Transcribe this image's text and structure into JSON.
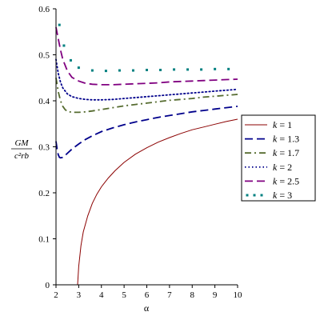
{
  "chart_data": {
    "type": "line",
    "title": "",
    "xlabel": "α",
    "ylabel": {
      "numerator": "GM",
      "denominator": "c²rb"
    },
    "xlim": [
      2,
      10
    ],
    "ylim": [
      0,
      0.6
    ],
    "xticks": [
      2,
      3,
      4,
      5,
      6,
      7,
      8,
      9,
      10
    ],
    "yticks": [
      0,
      0.1,
      0.2,
      0.3,
      0.4,
      0.5,
      0.6
    ],
    "grid": false,
    "legend_position": "right",
    "series": [
      {
        "name": "k = 1",
        "k": "1",
        "color": "#8b0000",
        "style": "solid",
        "x": [
          2.95,
          3.0,
          3.1,
          3.2,
          3.4,
          3.6,
          3.8,
          4.0,
          4.3,
          4.6,
          5.0,
          5.5,
          6.0,
          6.5,
          7.0,
          7.5,
          8.0,
          8.5,
          9.0,
          9.5,
          10.0
        ],
        "y": [
          0.0,
          0.04,
          0.085,
          0.115,
          0.15,
          0.177,
          0.197,
          0.213,
          0.232,
          0.248,
          0.266,
          0.284,
          0.298,
          0.31,
          0.32,
          0.329,
          0.337,
          0.343,
          0.349,
          0.355,
          0.36
        ]
      },
      {
        "name": "k = 1.3",
        "k": "1.3",
        "color": "#00008b",
        "style": "longdash",
        "x": [
          2.0,
          2.05,
          2.1,
          2.15,
          2.2,
          2.3,
          2.4,
          2.5,
          2.7,
          3.0,
          3.3,
          3.6,
          4.0,
          4.5,
          5.0,
          5.5,
          6.0,
          6.5,
          7.0,
          7.5,
          8.0,
          8.5,
          9.0,
          9.5,
          10.0
        ],
        "y": [
          0.312,
          0.295,
          0.283,
          0.277,
          0.276,
          0.277,
          0.281,
          0.286,
          0.295,
          0.306,
          0.316,
          0.324,
          0.333,
          0.341,
          0.348,
          0.354,
          0.359,
          0.364,
          0.368,
          0.372,
          0.376,
          0.379,
          0.382,
          0.385,
          0.388
        ]
      },
      {
        "name": "k = 1.7",
        "k": "1.7",
        "color": "#556b2f",
        "style": "dashdot",
        "x": [
          2.0,
          2.1,
          2.2,
          2.3,
          2.4,
          2.5,
          2.7,
          3.0,
          3.3,
          3.6,
          4.0,
          4.5,
          5.0,
          5.5,
          6.0,
          6.5,
          7.0,
          7.5,
          8.0,
          8.5,
          9.0,
          9.5,
          10.0
        ],
        "y": [
          0.45,
          0.42,
          0.4,
          0.388,
          0.381,
          0.377,
          0.375,
          0.375,
          0.376,
          0.378,
          0.381,
          0.385,
          0.389,
          0.392,
          0.395,
          0.398,
          0.401,
          0.403,
          0.405,
          0.408,
          0.41,
          0.412,
          0.414
        ]
      },
      {
        "name": "k = 2",
        "k": "2",
        "color": "#00008b",
        "style": "dotted",
        "x": [
          2.0,
          2.1,
          2.2,
          2.3,
          2.5,
          2.7,
          3.0,
          3.3,
          3.6,
          4.0,
          4.5,
          5.0,
          5.5,
          6.0,
          6.5,
          7.0,
          7.5,
          8.0,
          8.5,
          9.0,
          9.5,
          10.0
        ],
        "y": [
          0.49,
          0.46,
          0.44,
          0.428,
          0.415,
          0.409,
          0.405,
          0.403,
          0.402,
          0.402,
          0.403,
          0.405,
          0.407,
          0.409,
          0.411,
          0.413,
          0.415,
          0.417,
          0.419,
          0.421,
          0.423,
          0.425
        ]
      },
      {
        "name": "k = 2.5",
        "k": "2.5",
        "color": "#800080",
        "style": "longdash",
        "x": [
          2.0,
          2.1,
          2.2,
          2.3,
          2.5,
          2.7,
          3.0,
          3.3,
          3.6,
          4.0,
          4.5,
          5.0,
          5.5,
          6.0,
          6.5,
          7.0,
          7.5,
          8.0,
          8.5,
          9.0,
          9.5,
          10.0
        ],
        "y": [
          0.56,
          0.535,
          0.51,
          0.49,
          0.465,
          0.451,
          0.443,
          0.438,
          0.436,
          0.435,
          0.435,
          0.436,
          0.437,
          0.438,
          0.439,
          0.441,
          0.442,
          0.443,
          0.444,
          0.445,
          0.446,
          0.447
        ]
      },
      {
        "name": "k = 3",
        "k": "3",
        "color": "#008080",
        "style": "points",
        "x": [
          2.15,
          2.35,
          2.65,
          3.0,
          3.6,
          4.2,
          4.8,
          5.4,
          6.0,
          6.6,
          7.2,
          7.8,
          8.4,
          9.0,
          9.6
        ],
        "y": [
          0.565,
          0.52,
          0.488,
          0.472,
          0.466,
          0.465,
          0.466,
          0.466,
          0.467,
          0.467,
          0.468,
          0.468,
          0.468,
          0.469,
          0.469
        ]
      }
    ]
  }
}
